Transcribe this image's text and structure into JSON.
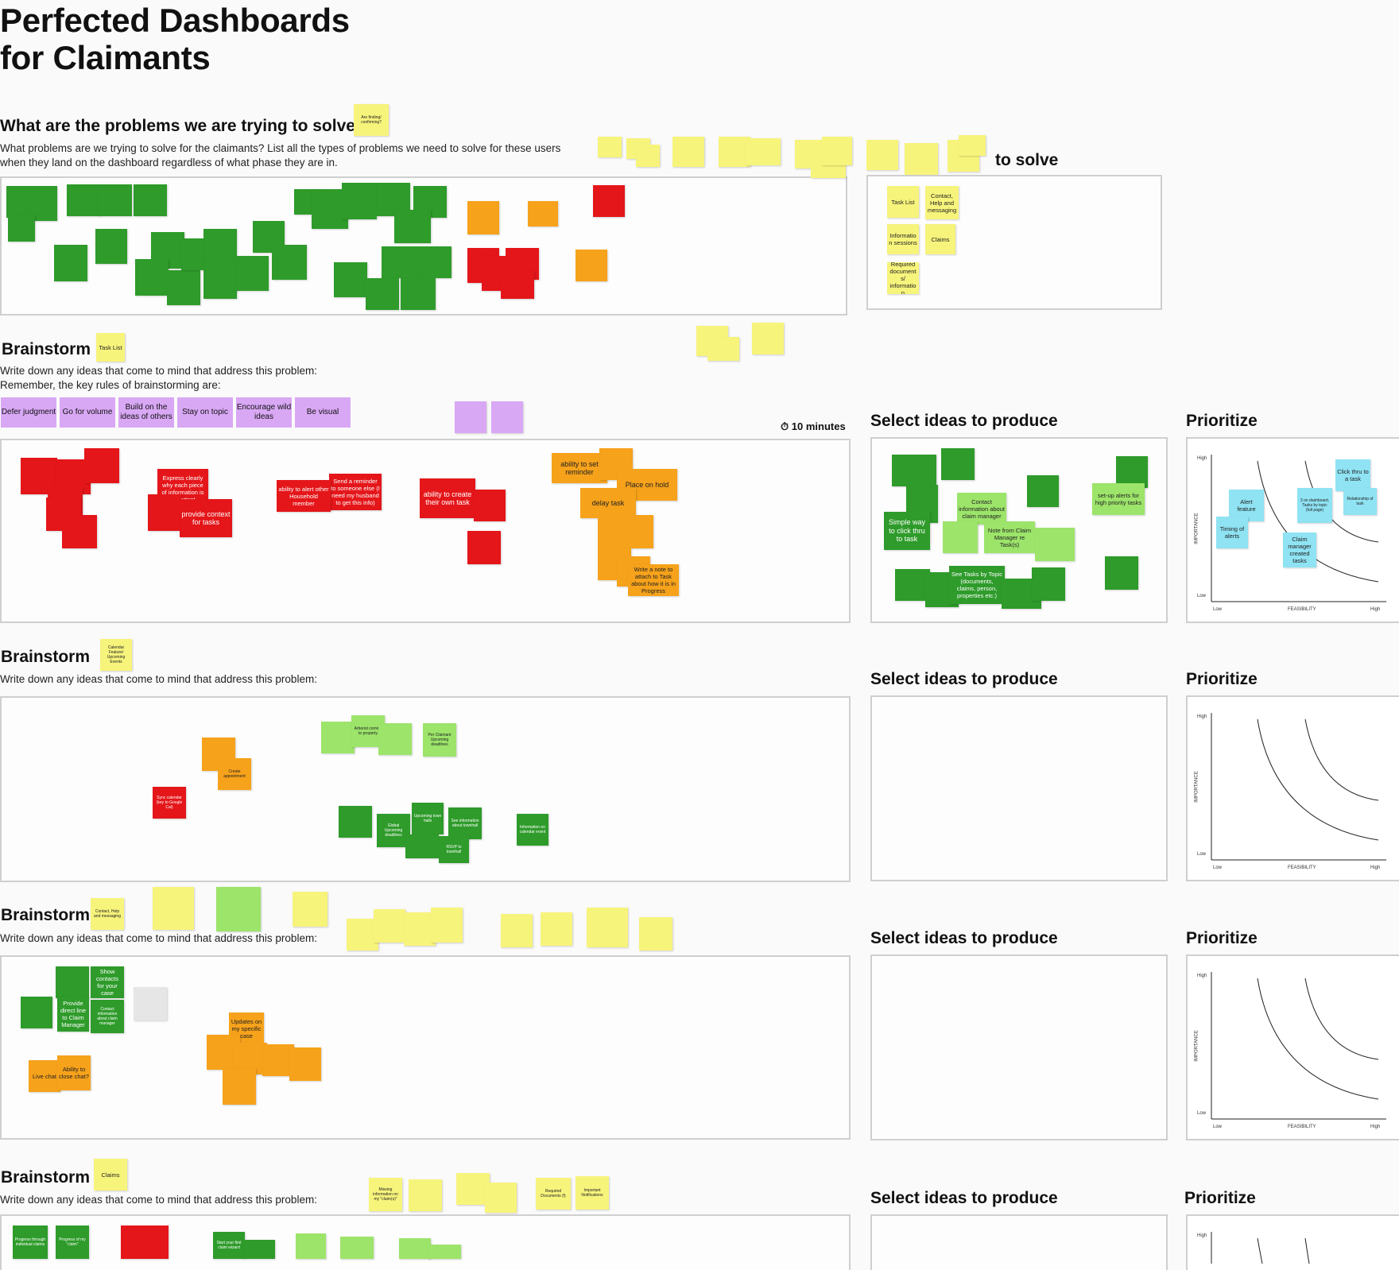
{
  "board": {
    "title_line1": "Perfected Dashboards",
    "title_line2": "for Claimants"
  },
  "problems": {
    "heading": "What are the problems we are trying to solve",
    "desc_line1": "What problems are we trying to solve for the claimants? List all the types of problems we need to solve for these users",
    "desc_line2": "when they land on the dashboard regardless of what phase they are in.",
    "heading_note": "Are finding/ confirming?",
    "right_heading": "to solve",
    "right_notes": [
      "Task List",
      "Contact, Help and messaging",
      "Information sessions",
      "Claims",
      "Required documents/ information"
    ]
  },
  "brainstorm1": {
    "heading": "Brainstorm",
    "tag": "Task List",
    "line1": "Write down any ideas that come to mind that address this problem:",
    "line2": "Remember, the key rules of brainstorming are:",
    "rules": [
      "Defer judgment",
      "Go for volume",
      "Build on the ideas of others",
      "Stay on topic",
      "Encourage wild ideas",
      "Be visual"
    ],
    "timer": "10 minutes"
  },
  "brainstorm2": {
    "heading": "Brainstorm",
    "tag": "Calendar Feature/ Upcoming Events",
    "line1": "Write down any ideas that come to mind that address this problem:"
  },
  "brainstorm3": {
    "heading": "Brainstorm",
    "tag": "Contact, Help and messaging",
    "line1": "Write down any ideas that come to mind that address this problem:"
  },
  "brainstorm4": {
    "heading": "Brainstorm",
    "tag": "Claims",
    "line1": "Write down any ideas that come to mind that address this problem:"
  },
  "select": {
    "heading": "Select ideas to produce"
  },
  "prioritize": {
    "heading": "Prioritize",
    "y_axis": "IMPORTANCE",
    "x_axis": "FEASIBILITY",
    "high": "High",
    "low": "Low"
  },
  "notes_b1": [
    "Express clearly why each piece of information is important",
    "Send a reminder to someone else (I need my husband to get this info)",
    "ability to alert other Household member",
    "ability to create their own task",
    "Place on hold",
    "ability to set reminder",
    "delay task",
    "Write a note to attach to Task about how it is in Progress"
  ],
  "notes_select1": [
    "Simple way to click thru to task",
    "Contact information about claim manager",
    "Note from Claim Manager re Task(s)",
    "See Tasks by Topic (documents, claims, person, properties etc.)",
    "set-up alerts for high priority tasks"
  ],
  "notes_prio1": [
    "Click thru to a task",
    "Alert feature",
    "Timing of alerts",
    "Claim manager created tasks",
    "3 on dashboard, Tasks by topic (full page)",
    "Relationship of task"
  ],
  "notes_b2": [
    "Arborist coming to property",
    "Per Claimant Upcoming deadlines",
    "Create appointment",
    "Sync calendar (key to Google Cal)",
    "Global Upcoming deadlines",
    "Upcoming town halls",
    "See information about townhall",
    "RSVP to townhall",
    "Information on calendar event"
  ],
  "notes_b3": [
    "Show contacts for your case",
    "Provide direct line to Claim Manager",
    "Contact information about claim manager",
    "Updates on my specific case",
    "Ability to close chat?",
    "Live chat"
  ],
  "notes_b4": [
    "Progress through individual claims",
    "Progress of my \"claim\"",
    "Start your first claim wizard",
    "Missing information on my \"claim(s)\"",
    "Required Documents (f)",
    "Important Notifications"
  ]
}
